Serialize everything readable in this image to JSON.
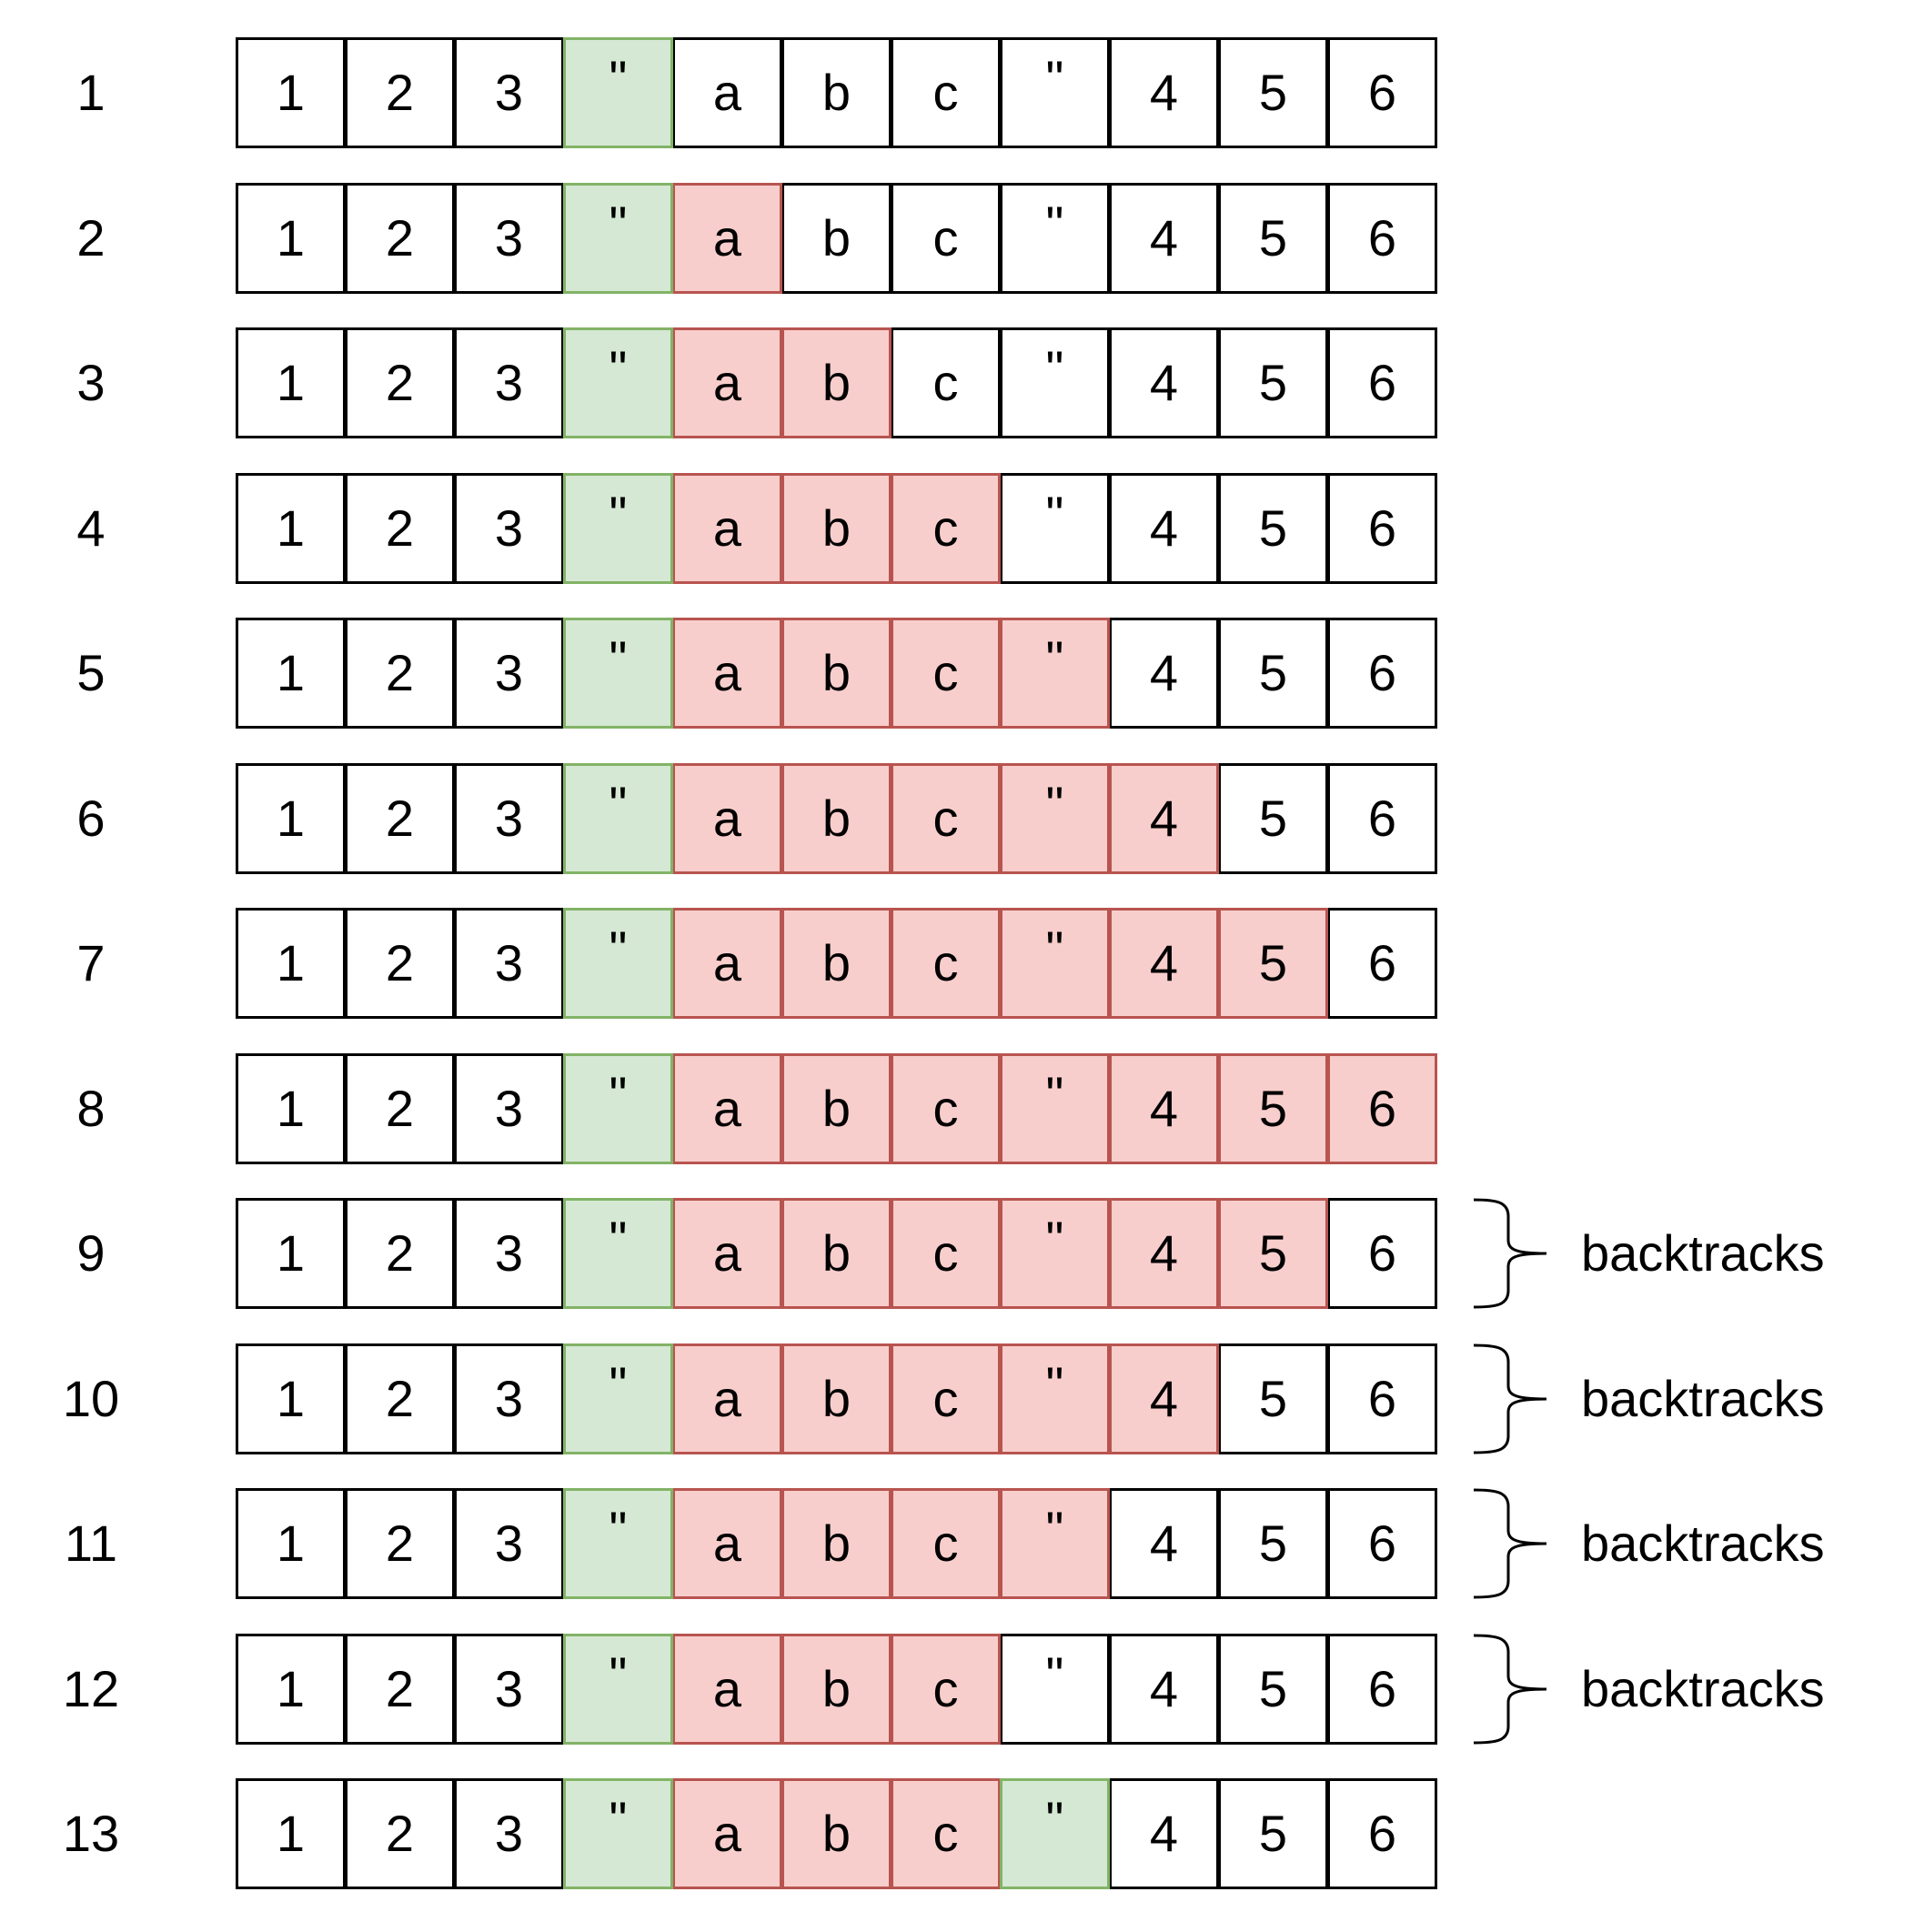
{
  "tape": [
    "1",
    "2",
    "3",
    "\"",
    "a",
    "b",
    "c",
    "\"",
    "4",
    "5",
    "6"
  ],
  "colors": {
    "green_fill": "#d5e8d4",
    "green_stroke": "#82b366",
    "red_fill": "#f8cecc",
    "red_stroke": "#b85450",
    "default_fill": "#ffffff",
    "default_stroke": "#000000"
  },
  "steps": [
    {
      "label": "1",
      "green": [
        3
      ],
      "red": [],
      "note": ""
    },
    {
      "label": "2",
      "green": [
        3
      ],
      "red": [
        4
      ],
      "note": ""
    },
    {
      "label": "3",
      "green": [
        3
      ],
      "red": [
        4,
        5
      ],
      "note": ""
    },
    {
      "label": "4",
      "green": [
        3
      ],
      "red": [
        4,
        5,
        6
      ],
      "note": ""
    },
    {
      "label": "5",
      "green": [
        3
      ],
      "red": [
        4,
        5,
        6,
        7
      ],
      "note": ""
    },
    {
      "label": "6",
      "green": [
        3
      ],
      "red": [
        4,
        5,
        6,
        7,
        8
      ],
      "note": ""
    },
    {
      "label": "7",
      "green": [
        3
      ],
      "red": [
        4,
        5,
        6,
        7,
        8,
        9
      ],
      "note": ""
    },
    {
      "label": "8",
      "green": [
        3
      ],
      "red": [
        4,
        5,
        6,
        7,
        8,
        9,
        10
      ],
      "note": ""
    },
    {
      "label": "9",
      "green": [
        3
      ],
      "red": [
        4,
        5,
        6,
        7,
        8,
        9
      ],
      "note": "backtracks"
    },
    {
      "label": "10",
      "green": [
        3
      ],
      "red": [
        4,
        5,
        6,
        7,
        8
      ],
      "note": "backtracks"
    },
    {
      "label": "11",
      "green": [
        3
      ],
      "red": [
        4,
        5,
        6,
        7
      ],
      "note": "backtracks"
    },
    {
      "label": "12",
      "green": [
        3
      ],
      "red": [
        4,
        5,
        6
      ],
      "note": "backtracks"
    },
    {
      "label": "13",
      "green": [
        3,
        7
      ],
      "red": [
        4,
        5,
        6
      ],
      "note": ""
    }
  ]
}
